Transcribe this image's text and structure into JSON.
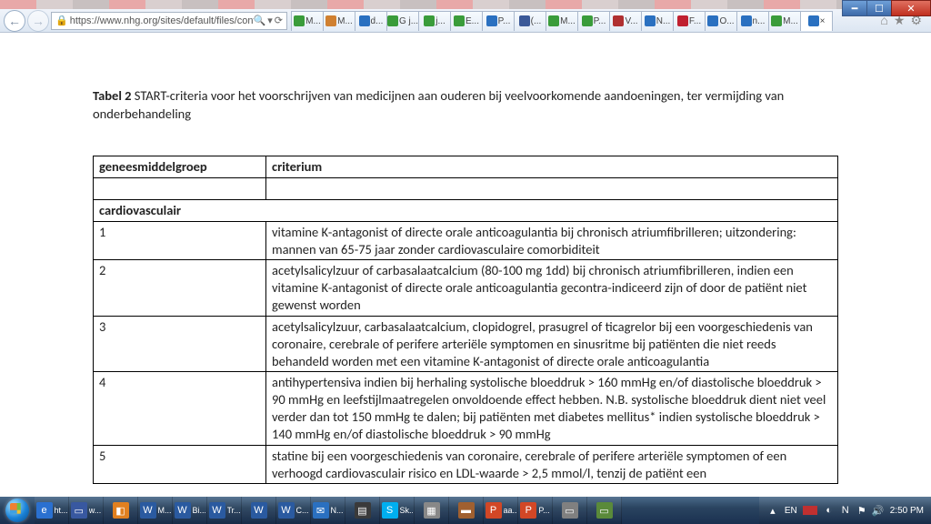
{
  "window": {
    "controls": {
      "min": "━",
      "max": "☐",
      "close": "✕"
    }
  },
  "browser": {
    "back": "←",
    "forward": "→",
    "url": "https://www.nhg.org/sites/default/files/content/nl",
    "addr_icons": {
      "lock": "🔒",
      "refresh": "⟳",
      "search": "🔍",
      "dropdown": "▾"
    },
    "tabs": [
      {
        "fav": "#3a9c3a",
        "label": "M..."
      },
      {
        "fav": "#d08030",
        "label": "M..."
      },
      {
        "fav": "#2a70c0",
        "label": "d..."
      },
      {
        "fav": "#3a9c3a",
        "label": "G j..."
      },
      {
        "fav": "#3a9c3a",
        "label": "j..."
      },
      {
        "fav": "#3a9c3a",
        "label": "E..."
      },
      {
        "fav": "#2a70c0",
        "label": "P..."
      },
      {
        "fav": "#3b5998",
        "label": "(..."
      },
      {
        "fav": "#3a9c3a",
        "label": "M..."
      },
      {
        "fav": "#3a9c3a",
        "label": "P..."
      },
      {
        "fav": "#b03030",
        "label": "V..."
      },
      {
        "fav": "#2a70c0",
        "label": "N..."
      },
      {
        "fav": "#c02030",
        "label": "F..."
      },
      {
        "fav": "#2a70c0",
        "label": "O..."
      },
      {
        "fav": "#2a70c0",
        "label": "n..."
      },
      {
        "fav": "#3a9c3a",
        "label": "M..."
      },
      {
        "fav": "#2a70c0",
        "label": "×",
        "active": true
      }
    ],
    "right_icons": {
      "home": "⌂",
      "star": "★",
      "gear": "⚙"
    }
  },
  "document": {
    "caption_bold": "Tabel 2",
    "caption_rest": " START-criteria voor het voorschrijven van medicijnen aan ouderen bij veelvoorkomende aandoeningen, ter vermijding van onderbehandeling",
    "headers": {
      "col1": "geneesmiddelgroep",
      "col2": "criterium"
    },
    "section": "cardiovasculair",
    "rows": [
      {
        "n": "1",
        "text": "vitamine K-antagonist of directe orale anticoagulantia bij chronisch atriumfibrilleren; uitzondering: mannen van 65-75 jaar zonder cardiovasculaire comorbiditeit"
      },
      {
        "n": "2",
        "text": "acetylsalicylzuur of carbasalaatcalcium (80-100 mg 1dd) bij chronisch atriumfibrilleren, indien een vitamine K-antagonist of directe orale anticoagulantia gecontra-indiceerd zijn of door de patiënt niet gewenst worden"
      },
      {
        "n": "3",
        "text": "acetylsalicylzuur, carbasalaatcalcium, clopidogrel, prasugrel of ticagrelor bij een voorgeschiedenis van coronaire, cerebrale of perifere arteriële symptomen en sinusritme bij patiënten die niet reeds behandeld worden met een vitamine K-antagonist of directe orale anticoagulantia"
      },
      {
        "n": "4",
        "text": "antihypertensiva indien bij herhaling systolische bloeddruk > 160 mmHg en/of diastolische bloeddruk > 90 mmHg en leefstijlmaatregelen onvoldoende effect hebben. N.B. systolische bloeddruk dient niet veel verder dan tot 150 mmHg te dalen; bij patiënten met diabetes mellitus* indien systolische bloeddruk > 140 mmHg en/of diastolische bloeddruk > 90 mmHg"
      },
      {
        "n": "5",
        "text": "statine bij een voorgeschiedenis van coronaire, cerebrale of perifere arteriële symptomen of een verhoogd cardiovasculair risico en LDL-waarde > 2,5 mmol/l, tenzij de patiënt een"
      }
    ]
  },
  "taskbar": {
    "items": [
      {
        "bg": "#2a70d0",
        "glyph": "e",
        "label": "ht..."
      },
      {
        "bg": "#3858a0",
        "glyph": "▭",
        "label": "w..."
      },
      {
        "bg": "#e08020",
        "glyph": "◧",
        "label": ""
      },
      {
        "bg": "#2a5aa0",
        "glyph": "W",
        "label": "M..."
      },
      {
        "bg": "#2a5aa0",
        "glyph": "W",
        "label": "Bi..."
      },
      {
        "bg": "#2a5aa0",
        "glyph": "W",
        "label": "Tr..."
      },
      {
        "bg": "#2a5aa0",
        "glyph": "W",
        "label": ""
      },
      {
        "bg": "#2a5aa0",
        "glyph": "W",
        "label": "C..."
      },
      {
        "bg": "#2a70c0",
        "glyph": "✉",
        "label": "N..."
      },
      {
        "bg": "#3a3a3a",
        "glyph": "▤",
        "label": ""
      },
      {
        "bg": "#00aff0",
        "glyph": "S",
        "label": "Sk..."
      },
      {
        "bg": "#888888",
        "glyph": "▦",
        "label": ""
      },
      {
        "bg": "#a06030",
        "glyph": "▬",
        "label": ""
      },
      {
        "bg": "#d24726",
        "glyph": "P",
        "label": "aa..."
      },
      {
        "bg": "#d24726",
        "glyph": "P",
        "label": "P..."
      },
      {
        "bg": "#808080",
        "glyph": "▭",
        "label": ""
      },
      {
        "bg": "#5a8a3a",
        "glyph": "▭",
        "label": ""
      }
    ],
    "tray": {
      "up": "▴",
      "lang": "EN",
      "flag": "▬",
      "icons": [
        "◐",
        "N",
        "⚑",
        "🔊"
      ],
      "time": "2:50 PM"
    }
  }
}
